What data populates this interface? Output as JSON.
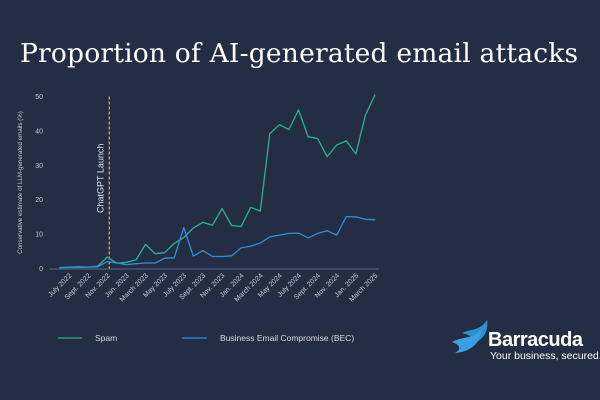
{
  "chart_data": {
    "type": "line",
    "title": "Proportion of AI-generated email attacks",
    "ylabel": "Conservative estimate of LLM-generated emails (%)",
    "xlabel": "",
    "ylim": [
      0,
      50
    ],
    "yticks": [
      "0",
      "10",
      "20",
      "30",
      "40",
      "50"
    ],
    "grid": false,
    "legend_position": "bottom",
    "x_labels": [
      "July 2022",
      "Sept. 2022",
      "Nov. 2022",
      "Jan. 2023",
      "March 2023",
      "May 2023",
      "July 2023",
      "Sept. 2023",
      "Nov. 2023",
      "Jan. 2024",
      "March 2024",
      "May 2024",
      "July 2024",
      "Sept. 2024",
      "Nov. 2024",
      "Jan. 2025",
      "March 2025"
    ],
    "x": [
      "June 2022",
      "July 2022",
      "Aug. 2022",
      "Sept. 2022",
      "Oct. 2022",
      "Nov. 2022",
      "Dec. 2022",
      "Jan. 2023",
      "Feb. 2023",
      "March 2023",
      "April 2023",
      "May 2023",
      "June 2023",
      "July 2023",
      "Aug. 2023",
      "Sept. 2023",
      "Oct. 2023",
      "Nov. 2023",
      "Dec. 2023",
      "Jan. 2024",
      "Feb. 2024",
      "March 2024",
      "April 2024",
      "May 2024",
      "June 2024",
      "July 2024",
      "Aug. 2024",
      "Sept. 2024",
      "Oct. 2024",
      "Nov. 2024",
      "Dec. 2024",
      "Jan. 2025",
      "Feb. 2025",
      "March 2025"
    ],
    "series": [
      {
        "name": "Spam",
        "color": "#2bb294",
        "values": [
          0.3,
          0.4,
          0.5,
          0.4,
          0.7,
          3.3,
          1.5,
          1.8,
          2.5,
          7.0,
          4.3,
          4.6,
          7.3,
          9.0,
          11.8,
          13.4,
          12.6,
          17.4,
          12.5,
          12.2,
          17.8,
          16.7,
          39.2,
          41.8,
          40.4,
          46.1,
          38.3,
          37.8,
          32.5,
          35.9,
          37.1,
          33.3,
          44.6,
          50.5
        ]
      },
      {
        "name": "Business Email Compromise (BEC)",
        "color": "#2f8fd4",
        "values": [
          0.2,
          0.3,
          0.3,
          0.4,
          0.5,
          2.0,
          1.6,
          1.1,
          1.4,
          1.6,
          1.6,
          3.0,
          3.1,
          11.9,
          3.6,
          5.2,
          3.5,
          3.5,
          3.7,
          6.0,
          6.5,
          7.4,
          9.2,
          9.7,
          10.2,
          10.3,
          8.9,
          10.2,
          11.0,
          9.7,
          15.1,
          15.0,
          14.3,
          14.2
        ]
      }
    ],
    "annotations": [
      {
        "label": "ChatGPT Launch",
        "at": "Nov. 2022",
        "color": "#f3b32b"
      }
    ]
  },
  "brand": {
    "name": "Barracuda",
    "tagline": "Your business, secured."
  }
}
